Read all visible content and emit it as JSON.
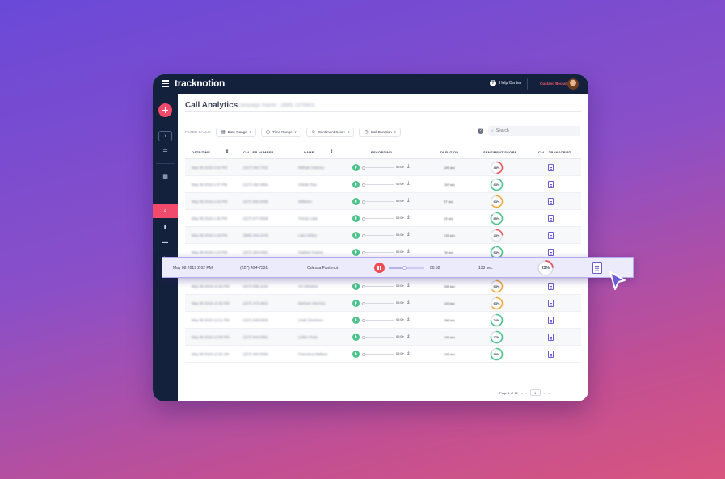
{
  "app": {
    "logo": "tracknotion",
    "help_label": "Help Center",
    "user_name": "Gustavo Bectal"
  },
  "page": {
    "title": "Call Analytics",
    "campaign": "Campaign Name - (888) 2378901"
  },
  "filters": {
    "label": "FILTER CALLS:",
    "items": [
      {
        "label": "Date Range",
        "icon": "calendar-icon"
      },
      {
        "label": "Time Range",
        "icon": "clock-icon"
      },
      {
        "label": "Sentiment Score",
        "icon": "smile-icon"
      },
      {
        "label": "Call Duration",
        "icon": "timer-icon"
      }
    ],
    "search_placeholder": "Search"
  },
  "columns": [
    "DATE/TIME",
    "CALLER NUMBER",
    "NAME",
    "RECORDING",
    "DURATION",
    "SENTIMENT SCORE",
    "CALL TRANSCRIPT"
  ],
  "rows": [
    {
      "date": "May 08 2019 2:02 PM",
      "number": "(227) 494-7331",
      "name": "Mikhail Ordesso",
      "time": "00:00",
      "duration": "220 sec",
      "score": 48,
      "color": "#e8545c"
    },
    {
      "date": "May 08 2019 1:57 PM",
      "number": "(227) 462-4951",
      "name": "Odette Ray",
      "time": "00:00",
      "duration": "197 sec",
      "score": 83,
      "color": "#4cc38a"
    },
    {
      "date": "May 08 2019 1:42 PM",
      "number": "(227) 966-0086",
      "name": "Williams",
      "time": "00:00",
      "duration": "57 sec",
      "score": 63,
      "color": "#f2a93b"
    },
    {
      "date": "May 08 2019 1:35 PM",
      "number": "(227) 977-0506",
      "name": "Tomas Lake",
      "time": "00:00",
      "duration": "23 sec",
      "score": 85,
      "color": "#4cc38a"
    },
    {
      "date": "May 08 2019 1:18 PM",
      "number": "(886) 494-2243",
      "name": "Lalo Ashley",
      "time": "00:00",
      "duration": "133 sec",
      "score": 23,
      "color": "#e8545c"
    },
    {
      "date": "May 08 2019 1:10 PM",
      "number": "(227) 494-0301",
      "name": "Hadrien Krasny",
      "time": "00:00",
      "duration": "78 sec",
      "score": 93,
      "color": "#4cc38a"
    },
    {
      "date": "May 08 2019 12:57 PM",
      "number": "(227) 494-0300",
      "name": "Lupe Heart",
      "time": "00:00",
      "duration": "105 sec",
      "score": 61,
      "color": "#f2a93b"
    },
    {
      "date": "May 08 2019 12:46 PM",
      "number": "(227) 556-1122",
      "name": "Ali Johnston",
      "time": "00:00",
      "duration": "200 sec",
      "score": 63,
      "color": "#f2a93b"
    },
    {
      "date": "May 08 2019 12:30 PM",
      "number": "(227) 473-4921",
      "name": "Marleen Monvoy",
      "time": "00:00",
      "duration": "110 sec",
      "score": 63,
      "color": "#f2a93b"
    },
    {
      "date": "May 08 2019 12:21 PM",
      "number": "(227) 848-9202",
      "name": "Uriah Dennison",
      "time": "00:00",
      "duration": "150 sec",
      "score": 74,
      "color": "#4cc38a"
    },
    {
      "date": "May 08 2019 12:08 PM",
      "number": "(227) 944-0061",
      "name": "Linker Rose",
      "time": "00:00",
      "duration": "120 sec",
      "score": 77,
      "color": "#4cc38a"
    },
    {
      "date": "May 08 2019 11:53 AM",
      "number": "(227) 494-0050",
      "name": "Francisca Wallace",
      "time": "00:00",
      "duration": "120 sec",
      "score": 80,
      "color": "#4cc38a"
    }
  ],
  "highlight": {
    "date": "May 08 2019  2:02 PM",
    "number": "(227) 494-7331",
    "name": "Odessa Fontenot",
    "time": "00:52",
    "duration": "133 sec",
    "score": 23,
    "color": "#e8545c",
    "progress": 0.45
  },
  "pagination": {
    "label": "Page 1 of 10",
    "current": "1"
  }
}
